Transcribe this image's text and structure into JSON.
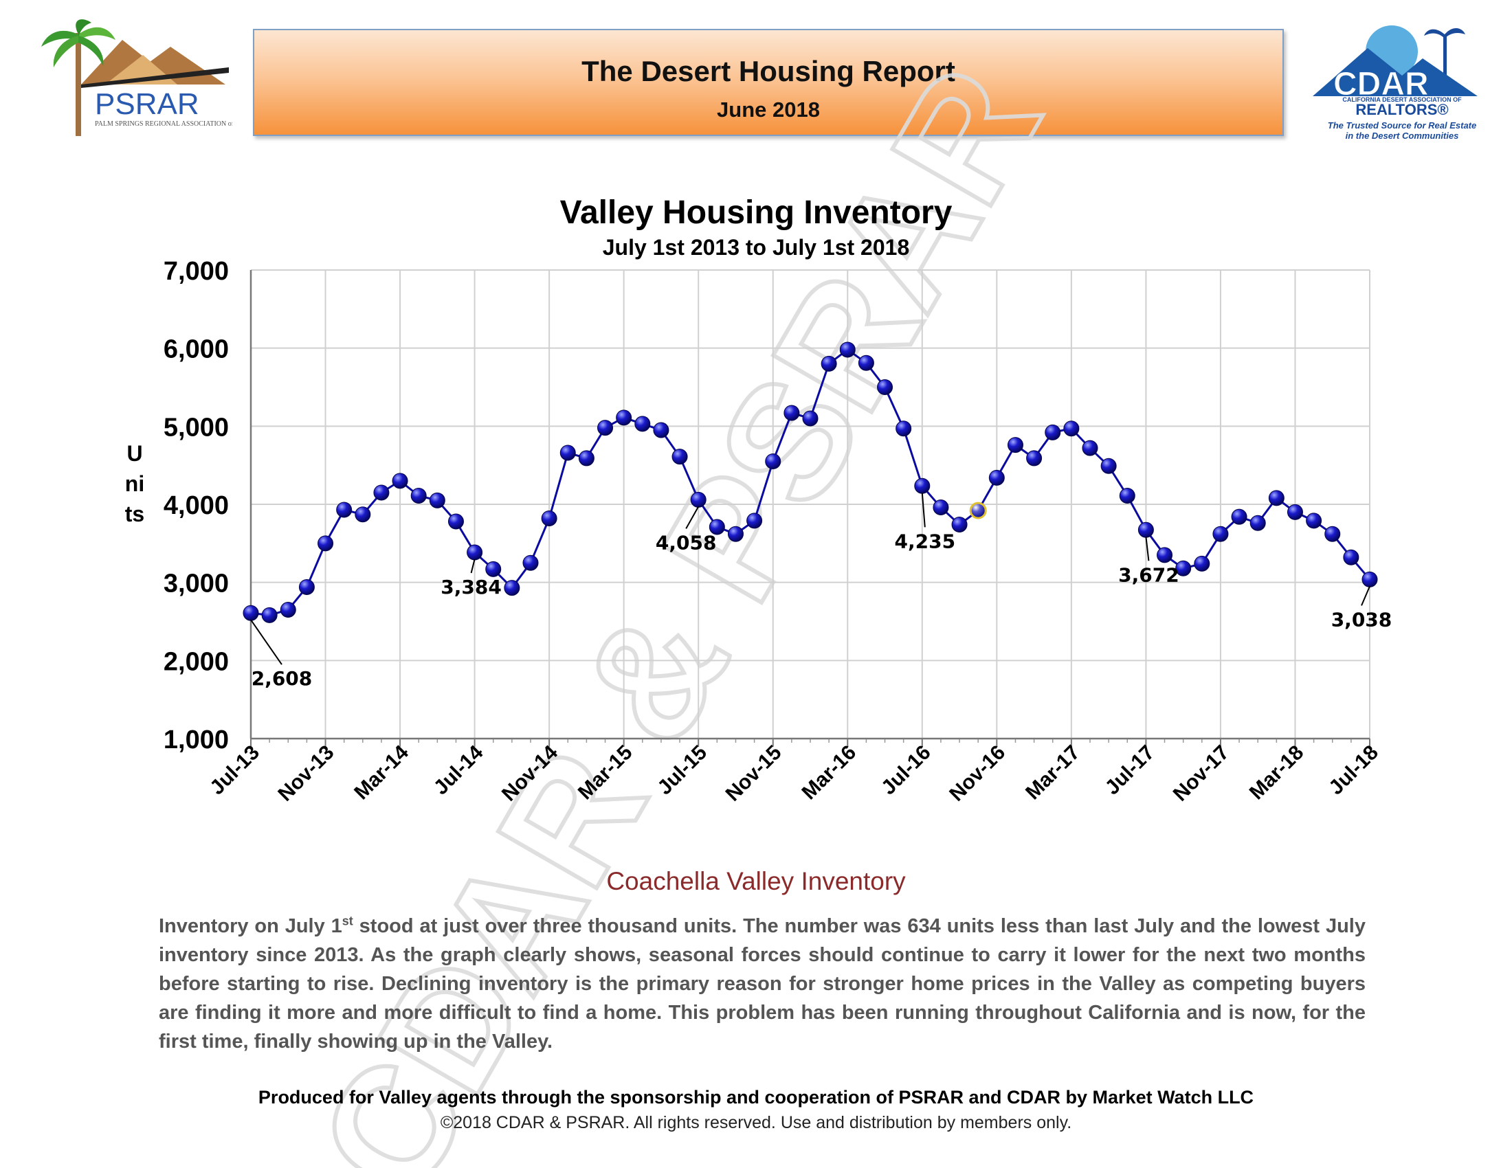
{
  "header": {
    "title": "The Desert Housing Report",
    "date": "June 2018"
  },
  "logos": {
    "left": {
      "name": "PSRAR",
      "tagline": "PALM SPRINGS REGIONAL ASSOCIATION of REALTORS®"
    },
    "right": {
      "name": "CDAR",
      "org": "CALIFORNIA DESERT ASSOCIATION OF",
      "realtors": "REALTORS®",
      "tagline1": "The Trusted Source for Real Estate",
      "tagline2": "in the Desert Communities"
    }
  },
  "watermark": "CDAR & PSRAR",
  "colors": {
    "line": "#0a0aa0",
    "marker": "#1a1acc",
    "highlight_marker": "#e0c030",
    "banner_dark": "#f6923c",
    "section_title": "#8b2a2a"
  },
  "chart_data": {
    "type": "line",
    "title": "Valley Housing Inventory",
    "subtitle": "July 1st  2013  to  July 1st  2018",
    "ylabel": "Units",
    "xlabel": "",
    "ylim": [
      1000,
      7000
    ],
    "yticks": [
      "1,000",
      "2,000",
      "3,000",
      "4,000",
      "5,000",
      "6,000",
      "7,000"
    ],
    "grid": true,
    "x_tick_labels": [
      "Jul-13",
      "Nov-13",
      "Mar-14",
      "Jul-14",
      "Nov-14",
      "Mar-15",
      "Jul-15",
      "Nov-15",
      "Mar-16",
      "Jul-16",
      "Nov-16",
      "Mar-17",
      "Jul-17",
      "Nov-17",
      "Mar-18",
      "Jul-18"
    ],
    "series": [
      {
        "name": "",
        "values": [
          2608,
          2580,
          2650,
          2940,
          3500,
          3930,
          3870,
          4150,
          4300,
          4110,
          4050,
          3780,
          3384,
          3170,
          2930,
          3250,
          3820,
          4660,
          4590,
          4980,
          5110,
          5030,
          4950,
          4610,
          4058,
          3710,
          3620,
          3790,
          4550,
          5170,
          5100,
          5800,
          5980,
          5810,
          5500,
          4970,
          4235,
          3960,
          3740,
          3920,
          4340,
          4760,
          4590,
          4920,
          4970,
          4720,
          4490,
          4110,
          3672,
          3350,
          3180,
          3240,
          3620,
          3840,
          3760,
          4080,
          3900,
          3790,
          3620,
          3320,
          3038
        ]
      }
    ],
    "highlight_index": 39,
    "annotations": [
      {
        "index": 0,
        "label": "2,608"
      },
      {
        "index": 12,
        "label": "3,384"
      },
      {
        "index": 24,
        "label": "4,058"
      },
      {
        "index": 36,
        "label": "4,235"
      },
      {
        "index": 48,
        "label": "3,672"
      },
      {
        "index": 60,
        "label": "3,038"
      }
    ]
  },
  "section_title": "Coachella Valley Inventory",
  "body": {
    "p1": "Inventory on July 1",
    "sup": "st",
    "p2": " stood at just over three thousand units. The number was 634 units less than last July and the lowest July inventory since 2013. As the graph clearly shows, seasonal forces should continue to carry it lower for the next two months before starting to rise. Declining inventory is the primary reason for stronger home prices in the Valley as competing buyers are finding it more and more difficult to find a home. This problem has been running throughout California and is now, for the first time, finally showing up in the Valley."
  },
  "footer": {
    "line1": "Produced for Valley agents through the sponsorship and cooperation of PSRAR and CDAR by Market Watch LLC",
    "line2": "©2018 CDAR & PSRAR.  All rights reserved.  Use and distribution by members only."
  }
}
